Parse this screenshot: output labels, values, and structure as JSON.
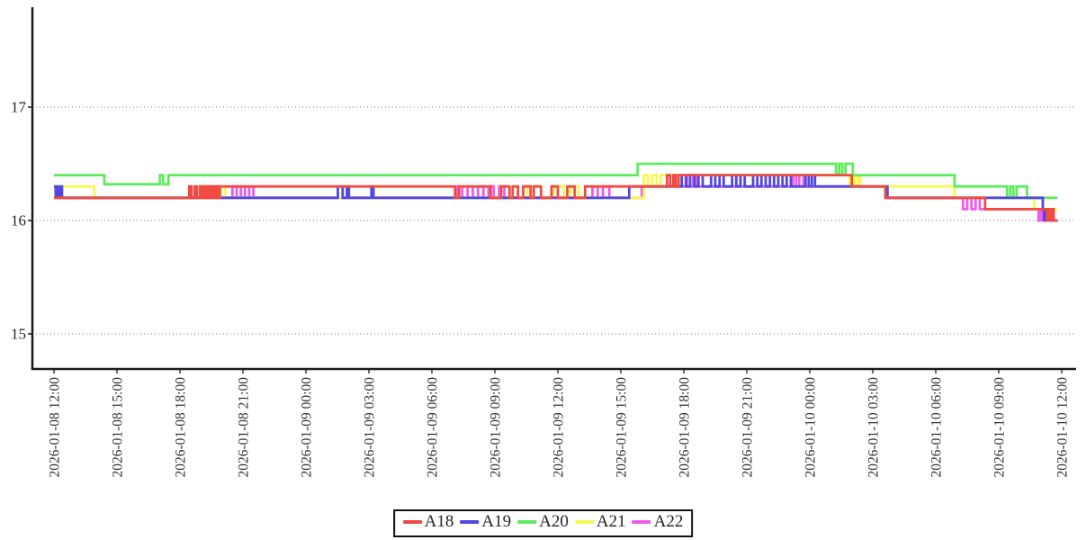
{
  "chart_data": {
    "type": "line",
    "step_mode": "step-after",
    "title": "",
    "x_axis": {
      "unit": "datetime",
      "range_hours": [
        0,
        48
      ],
      "tick_hours": [
        0,
        3,
        6,
        9,
        12,
        15,
        18,
        21,
        24,
        27,
        30,
        33,
        36,
        39,
        42,
        45,
        48
      ],
      "tick_labels": [
        "2026-01-08 12:00",
        "2026-01-08 15:00",
        "2026-01-08 18:00",
        "2026-01-08 21:00",
        "2026-01-09 00:00",
        "2026-01-09 03:00",
        "2026-01-09 06:00",
        "2026-01-09 09:00",
        "2026-01-09 12:00",
        "2026-01-09 15:00",
        "2026-01-09 18:00",
        "2026-01-09 21:00",
        "2026-01-10 00:00",
        "2026-01-10 03:00",
        "2026-01-10 06:00",
        "2026-01-10 09:00",
        "2026-01-10 12:00"
      ]
    },
    "y_axis": {
      "tick_values": [
        15,
        16,
        17
      ],
      "tick_labels": [
        "15",
        "16",
        "17"
      ],
      "range": [
        14.69,
        17.94
      ],
      "grid": "dotted-horizontal"
    },
    "t_end_hours": 47.8,
    "series": [
      {
        "name": "A18",
        "color": "#f04a41",
        "points": [
          [
            0,
            16.2
          ],
          [
            6.44,
            16.3
          ],
          [
            6.55,
            16.2
          ],
          [
            6.7,
            16.3
          ],
          [
            6.8,
            16.2
          ],
          [
            6.95,
            16.3
          ],
          [
            7.05,
            16.2
          ],
          [
            7.15,
            16.3
          ],
          [
            7.2,
            16.2
          ],
          [
            7.3,
            16.3
          ],
          [
            7.38,
            16.2
          ],
          [
            7.5,
            16.3
          ],
          [
            7.6,
            16.2
          ],
          [
            7.72,
            16.3
          ],
          [
            7.78,
            16.2
          ],
          [
            7.9,
            16.3
          ],
          [
            19.1,
            16.2
          ],
          [
            19.3,
            16.3
          ],
          [
            20.8,
            16.2
          ],
          [
            21.3,
            16.3
          ],
          [
            21.7,
            16.2
          ],
          [
            21.85,
            16.3
          ],
          [
            22.1,
            16.2
          ],
          [
            22.35,
            16.3
          ],
          [
            22.7,
            16.2
          ],
          [
            22.85,
            16.3
          ],
          [
            23.2,
            16.2
          ],
          [
            23.7,
            16.3
          ],
          [
            24.0,
            16.2
          ],
          [
            24.45,
            16.3
          ],
          [
            24.8,
            16.2
          ],
          [
            25.3,
            16.3
          ],
          [
            29.2,
            16.4
          ],
          [
            29.35,
            16.3
          ],
          [
            29.5,
            16.4
          ],
          [
            29.62,
            16.3
          ],
          [
            29.75,
            16.4
          ],
          [
            38.0,
            16.3
          ],
          [
            39.6,
            16.2
          ],
          [
            44.35,
            16.1
          ],
          [
            47.3,
            16.0
          ],
          [
            47.38,
            16.1
          ],
          [
            47.46,
            16.0
          ],
          [
            47.54,
            16.1
          ],
          [
            47.62,
            16.0
          ]
        ]
      },
      {
        "name": "A19",
        "color": "#4f49e1",
        "points": [
          [
            0,
            16.3
          ],
          [
            0.08,
            16.2
          ],
          [
            0.16,
            16.3
          ],
          [
            0.24,
            16.2
          ],
          [
            0.32,
            16.3
          ],
          [
            0.38,
            16.2
          ],
          [
            13.52,
            16.3
          ],
          [
            13.75,
            16.2
          ],
          [
            13.95,
            16.3
          ],
          [
            14.05,
            16.2
          ],
          [
            15.12,
            16.3
          ],
          [
            15.22,
            16.2
          ],
          [
            27.4,
            16.3
          ],
          [
            29.9,
            16.4
          ],
          [
            30.1,
            16.3
          ],
          [
            30.3,
            16.4
          ],
          [
            30.5,
            16.3
          ],
          [
            30.7,
            16.4
          ],
          [
            30.9,
            16.3
          ],
          [
            31.3,
            16.4
          ],
          [
            31.5,
            16.3
          ],
          [
            31.7,
            16.4
          ],
          [
            31.9,
            16.3
          ],
          [
            32.3,
            16.4
          ],
          [
            32.5,
            16.3
          ],
          [
            32.7,
            16.4
          ],
          [
            32.9,
            16.3
          ],
          [
            33.3,
            16.4
          ],
          [
            33.5,
            16.3
          ],
          [
            33.7,
            16.4
          ],
          [
            33.9,
            16.3
          ],
          [
            34.1,
            16.4
          ],
          [
            34.3,
            16.3
          ],
          [
            34.5,
            16.4
          ],
          [
            34.7,
            16.3
          ],
          [
            34.9,
            16.4
          ],
          [
            35.1,
            16.3
          ],
          [
            35.8,
            16.4
          ],
          [
            35.95,
            16.3
          ],
          [
            36.1,
            16.4
          ],
          [
            36.25,
            16.3
          ],
          [
            39.7,
            16.2
          ],
          [
            47.1,
            16.1
          ],
          [
            47.16,
            16.0
          ],
          [
            47.24,
            16.1
          ],
          [
            47.3,
            16.0
          ]
        ]
      },
      {
        "name": "A20",
        "color": "#5dec5d",
        "points": [
          [
            0,
            16.4
          ],
          [
            2.4,
            16.32
          ],
          [
            5.05,
            16.4
          ],
          [
            5.2,
            16.32
          ],
          [
            5.45,
            16.4
          ],
          [
            27.8,
            16.5
          ],
          [
            37.25,
            16.4
          ],
          [
            37.4,
            16.5
          ],
          [
            37.55,
            16.4
          ],
          [
            37.7,
            16.5
          ],
          [
            38.05,
            16.4
          ],
          [
            42.9,
            16.3
          ],
          [
            45.4,
            16.2
          ],
          [
            45.55,
            16.3
          ],
          [
            45.7,
            16.2
          ],
          [
            45.85,
            16.3
          ],
          [
            46.35,
            16.2
          ]
        ]
      },
      {
        "name": "A21",
        "color": "#f8f852",
        "points": [
          [
            0,
            16.3
          ],
          [
            1.93,
            16.2
          ],
          [
            7.0,
            16.3
          ],
          [
            7.1,
            16.2
          ],
          [
            7.18,
            16.3
          ],
          [
            7.28,
            16.2
          ],
          [
            7.95,
            16.3
          ],
          [
            8.15,
            16.2
          ],
          [
            22.55,
            16.3
          ],
          [
            23.2,
            16.2
          ],
          [
            23.8,
            16.3
          ],
          [
            24.3,
            16.2
          ],
          [
            24.6,
            16.3
          ],
          [
            25.0,
            16.2
          ],
          [
            28.1,
            16.4
          ],
          [
            28.3,
            16.3
          ],
          [
            28.5,
            16.4
          ],
          [
            28.7,
            16.3
          ],
          [
            28.9,
            16.4
          ],
          [
            37.9,
            16.3
          ],
          [
            38.05,
            16.4
          ],
          [
            38.15,
            16.3
          ],
          [
            38.3,
            16.4
          ],
          [
            38.4,
            16.3
          ],
          [
            42.9,
            16.2
          ],
          [
            46.7,
            16.1
          ]
        ]
      },
      {
        "name": "A22",
        "color": "#ee5bee",
        "points": [
          [
            0,
            16.2
          ],
          [
            6.95,
            16.3
          ],
          [
            7.1,
            16.2
          ],
          [
            7.22,
            16.3
          ],
          [
            7.4,
            16.2
          ],
          [
            7.55,
            16.3
          ],
          [
            7.75,
            16.2
          ],
          [
            8.5,
            16.3
          ],
          [
            8.7,
            16.2
          ],
          [
            8.9,
            16.3
          ],
          [
            9.1,
            16.2
          ],
          [
            9.3,
            16.3
          ],
          [
            9.5,
            16.2
          ],
          [
            19.2,
            16.3
          ],
          [
            19.45,
            16.2
          ],
          [
            19.7,
            16.3
          ],
          [
            19.95,
            16.2
          ],
          [
            20.2,
            16.3
          ],
          [
            20.45,
            16.2
          ],
          [
            20.7,
            16.3
          ],
          [
            20.95,
            16.2
          ],
          [
            21.2,
            16.3
          ],
          [
            21.45,
            16.2
          ],
          [
            25.65,
            16.3
          ],
          [
            25.9,
            16.2
          ],
          [
            26.15,
            16.3
          ],
          [
            26.45,
            16.2
          ],
          [
            28.0,
            16.3
          ],
          [
            30.15,
            16.4
          ],
          [
            30.3,
            16.3
          ],
          [
            30.45,
            16.4
          ],
          [
            30.6,
            16.3
          ],
          [
            35.2,
            16.4
          ],
          [
            35.35,
            16.3
          ],
          [
            35.5,
            16.4
          ],
          [
            35.7,
            16.3
          ],
          [
            39.7,
            16.2
          ],
          [
            43.3,
            16.1
          ],
          [
            43.5,
            16.2
          ],
          [
            43.7,
            16.1
          ],
          [
            43.9,
            16.2
          ],
          [
            44.1,
            16.1
          ],
          [
            46.9,
            16.0
          ],
          [
            47.0,
            16.1
          ],
          [
            47.1,
            16.0
          ]
        ]
      }
    ],
    "legend": {
      "position": "bottom-center",
      "items": [
        {
          "label": "A18",
          "color": "#f04a41"
        },
        {
          "label": "A19",
          "color": "#4f49e1"
        },
        {
          "label": "A20",
          "color": "#5dec5d"
        },
        {
          "label": "A21",
          "color": "#f8f852"
        },
        {
          "label": "A22",
          "color": "#ee5bee"
        }
      ]
    }
  }
}
